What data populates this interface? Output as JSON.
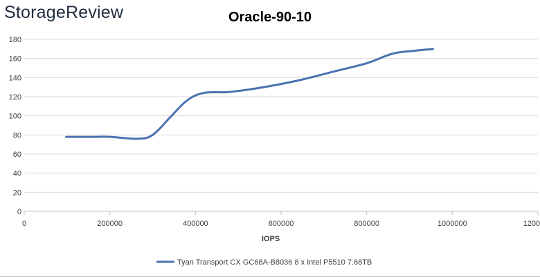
{
  "brand": {
    "logo_text": "StorageReview"
  },
  "chart_data": {
    "type": "line",
    "title": "Oracle-90-10",
    "xlabel": "IOPS",
    "ylabel": "",
    "xlim": [
      0,
      1200000
    ],
    "ylim": [
      0,
      180
    ],
    "x_ticks": [
      0,
      200000,
      400000,
      600000,
      800000,
      1000000,
      1200000
    ],
    "x_tick_labels": [
      "0",
      "200000",
      "400000",
      "600000",
      "800000",
      "1000000",
      "1200000"
    ],
    "y_ticks": [
      0,
      20,
      40,
      60,
      80,
      100,
      120,
      140,
      160,
      180
    ],
    "y_tick_labels": [
      "0",
      "20",
      "40",
      "60",
      "80",
      "100",
      "120",
      "140",
      "160",
      "180"
    ],
    "grid": "horizontal",
    "legend_position": "bottom",
    "series": [
      {
        "name": "Tyan Transport CX GC68A-B8036 8 x Intel P5510 7.68TB",
        "color": "#4a72b0",
        "x": [
          98000,
          160000,
          200000,
          265000,
          300000,
          340000,
          380000,
          420000,
          480000,
          560000,
          640000,
          720000,
          800000,
          860000,
          910000,
          955000
        ],
        "y": [
          78,
          78,
          78,
          76,
          80,
          98,
          116,
          124,
          125,
          130,
          137,
          146,
          155,
          165,
          168,
          170
        ]
      }
    ]
  }
}
